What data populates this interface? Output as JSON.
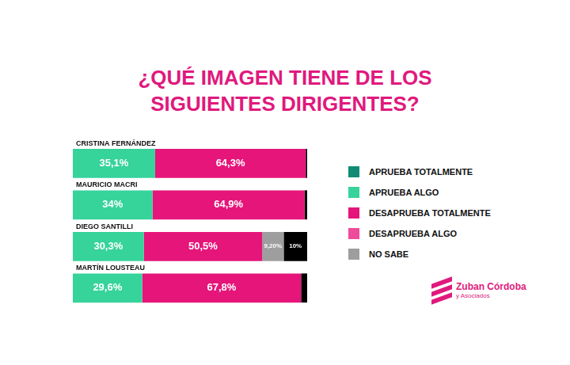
{
  "chart_data": {
    "type": "bar",
    "title": "¿QUÉ IMAGEN TIENE DE LOS SIGUIENTES DIRIGENTES?",
    "source": [
      "Zuban Córdoba",
      "y Asociados"
    ],
    "orientation": "horizontal",
    "stacked": true,
    "data_labels": true,
    "tick_labels": false,
    "grid": false,
    "legend": "right",
    "xlim": [
      0,
      100
    ],
    "categories": [
      "CRISTINA FERNÁNDEZ",
      "MAURICIO MACRI",
      "DIEGO SANTILLI",
      "MARTÍN LOUSTEAU"
    ],
    "series": [
      {
        "name": "APRUEBA TOTALMENTE",
        "color": "#0f8c73",
        "values": [
          null,
          null,
          null,
          null
        ]
      },
      {
        "name": "APRUEBA ALGO",
        "color": "#36d39b",
        "values": [
          35.1,
          34,
          30.3,
          29.6
        ],
        "value_labels": [
          "35,1%",
          "34%",
          "30,3%",
          "29,6%"
        ]
      },
      {
        "name": "DESAPRUEBA TOTALMENTE",
        "color": "#e5157a",
        "values": [
          64.3,
          64.9,
          50.5,
          67.8
        ],
        "value_labels": [
          "64,3%",
          "64,9%",
          "50,5%",
          "67,8%"
        ]
      },
      {
        "name": "DESAPRUEBA ALGO",
        "color": "#ee4b9b",
        "values": [
          null,
          null,
          null,
          null
        ]
      },
      {
        "name": "NO SABE",
        "color": "#9e9e9e",
        "values": [
          null,
          null,
          9.2,
          null
        ],
        "value_labels": [
          null,
          null,
          "9,20%",
          null
        ]
      },
      {
        "name": null,
        "color": "#000000",
        "values": [
          0.6,
          1.1,
          10,
          2.6
        ],
        "value_labels": [
          null,
          null,
          "10%",
          null
        ]
      }
    ]
  }
}
